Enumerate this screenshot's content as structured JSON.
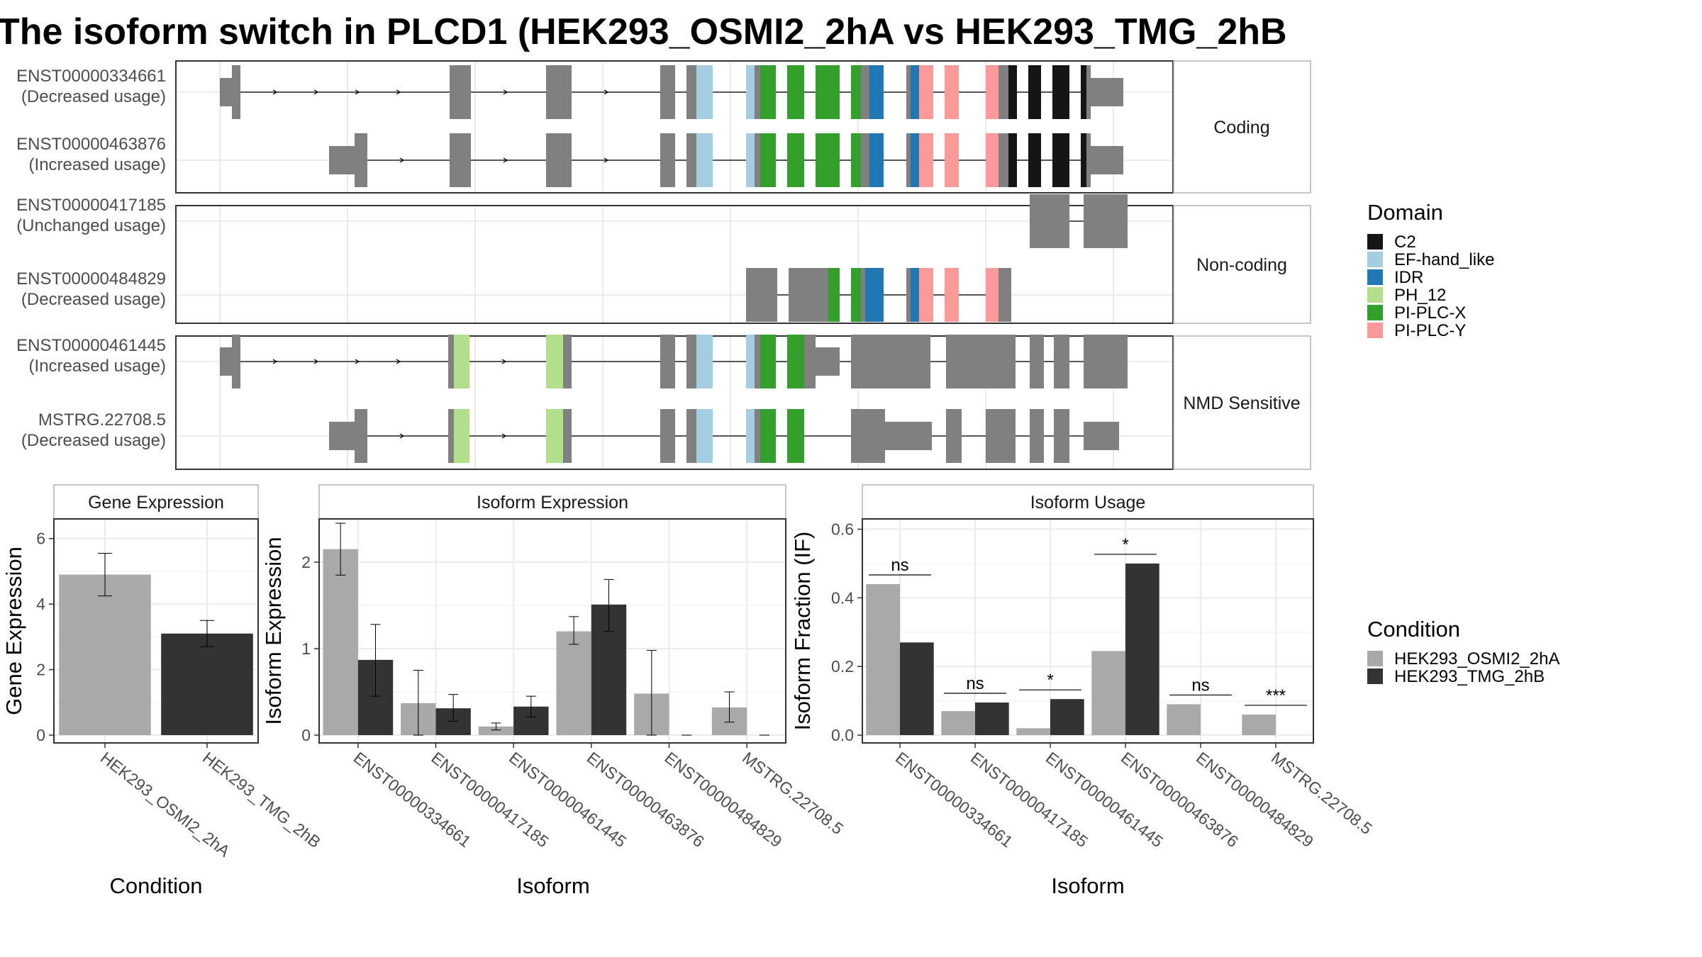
{
  "title": "The isoform switch in PLCD1 (HEK293_OSMI2_2hA vs HEK293_TMG_2hB",
  "colors": {
    "intron": "#000000",
    "utr": "#808080",
    "cond1": "#A9A9A9",
    "cond2": "#333333"
  },
  "domain_legend": {
    "title": "Domain",
    "items": [
      {
        "name": "C2",
        "color": "#151515"
      },
      {
        "name": "EF-hand_like",
        "color": "#A6CEE3"
      },
      {
        "name": "IDR",
        "color": "#1F78B4"
      },
      {
        "name": "PH_12",
        "color": "#B2DF8A"
      },
      {
        "name": "PI-PLC-X",
        "color": "#33A02C"
      },
      {
        "name": "PI-PLC-Y",
        "color": "#FB9A99"
      }
    ]
  },
  "condition_legend": {
    "title": "Condition",
    "items": [
      {
        "name": "HEK293_OSMI2_2hA",
        "color": "#A9A9A9"
      },
      {
        "name": "HEK293_TMG_2hB",
        "color": "#333333"
      }
    ]
  },
  "transcript_panels": [
    {
      "strip": "Coding",
      "transcripts": [
        {
          "id": "ENST00000334661",
          "usage": "(Decreased usage)"
        },
        {
          "id": "ENST00000463876",
          "usage": "(Increased usage)"
        }
      ]
    },
    {
      "strip": "Non-coding",
      "transcripts": [
        {
          "id": "ENST00000417185",
          "usage": "(Unchanged usage)"
        },
        {
          "id": "ENST00000484829",
          "usage": "(Decreased usage)"
        }
      ]
    },
    {
      "strip": "NMD Sensitive",
      "transcripts": [
        {
          "id": "ENST00000461445",
          "usage": "(Increased usage)"
        },
        {
          "id": "MSTRG.22708.5",
          "usage": "(Decreased usage)"
        }
      ]
    }
  ],
  "chart_data": [
    {
      "type": "bar",
      "title": "Gene Expression",
      "xlabel": "Condition",
      "ylabel": "Gene Expression",
      "categories": [
        "HEK293_OSMI2_2hA",
        "HEK293_TMG_2hB"
      ],
      "values": [
        4.9,
        3.1
      ],
      "error_low": [
        4.25,
        2.7
      ],
      "error_high": [
        5.55,
        3.5
      ],
      "ylim": [
        0,
        6.6
      ],
      "yticks": [
        0,
        2,
        4,
        6
      ],
      "grid": true
    },
    {
      "type": "bar",
      "title": "Isoform Expression",
      "xlabel": "Isoform",
      "ylabel": "Isoform Expression",
      "categories": [
        "ENST00000334661",
        "ENST00000417185",
        "ENST00000461445",
        "ENST00000463876",
        "ENST00000484829",
        "MSTRG.22708.5"
      ],
      "series": [
        {
          "name": "HEK293_OSMI2_2hA",
          "values": [
            2.15,
            0.37,
            0.1,
            1.2,
            0.48,
            0.32
          ],
          "error_low": [
            1.85,
            0.0,
            0.06,
            1.05,
            0.0,
            0.15
          ],
          "error_high": [
            2.45,
            0.75,
            0.14,
            1.37,
            0.98,
            0.5
          ]
        },
        {
          "name": "HEK293_TMG_2hB",
          "values": [
            0.87,
            0.31,
            0.33,
            1.51,
            0.0,
            0.0
          ],
          "error_low": [
            0.45,
            0.16,
            0.21,
            1.2,
            0.0,
            0.0
          ],
          "error_high": [
            1.28,
            0.47,
            0.45,
            1.8,
            0.0,
            0.0
          ]
        }
      ],
      "ylim": [
        0,
        2.5
      ],
      "yticks": [
        0,
        1,
        2
      ],
      "grid": true
    },
    {
      "type": "bar",
      "title": "Isoform Usage",
      "xlabel": "Isoform",
      "ylabel": "Isoform Fraction (IF)",
      "categories": [
        "ENST00000334661",
        "ENST00000417185",
        "ENST00000461445",
        "ENST00000463876",
        "ENST00000484829",
        "MSTRG.22708.5"
      ],
      "series": [
        {
          "name": "HEK293_OSMI2_2hA",
          "values": [
            0.44,
            0.07,
            0.02,
            0.245,
            0.09,
            0.06
          ]
        },
        {
          "name": "HEK293_TMG_2hB",
          "values": [
            0.27,
            0.095,
            0.105,
            0.5,
            0.0,
            0.0
          ]
        }
      ],
      "significance": [
        "ns",
        "ns",
        "*",
        "*",
        "ns",
        "***"
      ],
      "ylim": [
        0,
        0.63
      ],
      "yticks": [
        "0.0",
        "0.2",
        "0.4",
        "0.6"
      ],
      "grid": true
    }
  ]
}
